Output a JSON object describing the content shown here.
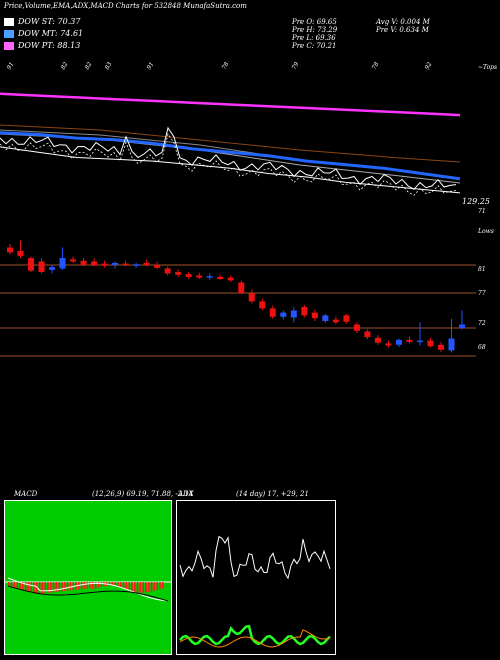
{
  "header": {
    "title": "Price,Volume,EMA,ADX,MACD Charts for 532848  MunafaSutra.com",
    "legends": [
      {
        "label": "DOW ST: 70.37",
        "color": "#ffffff"
      },
      {
        "label": "DOW MT: 74.61",
        "color": "#4aa0ff"
      },
      {
        "label": "DOW PT: 88.13",
        "color": "#ff66ff"
      }
    ],
    "ohlc": [
      {
        "label": "Pre  O: 69.65",
        "extra": "Avg V: 0.004  M"
      },
      {
        "label": "Pre  H: 73.29",
        "extra": "Pre  V: 0.634  M"
      },
      {
        "label": "Pre  L: 69.36",
        "extra": ""
      },
      {
        "label": "Pre  C: 70.21",
        "extra": ""
      }
    ]
  },
  "ema_panel": {
    "right_label": "~Tops",
    "last_value": "129.25",
    "small_axis_value": "71",
    "top_labels": [
      "91",
      "82",
      "82",
      "83",
      "91",
      "78",
      "79",
      "78",
      "92"
    ],
    "bottom_labels": [
      "99",
      "83",
      "93",
      "94",
      "93",
      "82",
      "81",
      "73",
      "77",
      "72",
      "66",
      "69",
      "70"
    ]
  },
  "price_panel": {
    "right_label": "Lows",
    "y_ticks": [
      "81",
      "77",
      "72",
      "68"
    ],
    "colors": {
      "up": "#2255ff",
      "down": "#ee1111",
      "ref_line": "#a0522d"
    }
  },
  "macd_panel": {
    "label": "MACD",
    "params": "(12,26,9) 69.19, 71.88, -2.14",
    "colors": {
      "bars": "#ff1a1a",
      "bg": "#00cc00"
    }
  },
  "adx_panel": {
    "label": "ADX",
    "params": "(14 day) 17, +29, 21",
    "colors": {
      "plus_di": "#ffffff",
      "minus_di": "#22ff22",
      "adx": "#ff8800"
    }
  },
  "chart_data": [
    {
      "type": "line",
      "title": "EMA",
      "series": [
        {
          "name": "DOW PT",
          "values": [
            130,
            129,
            128,
            127,
            126,
            125,
            124,
            123,
            122,
            121,
            120,
            119,
            118
          ]
        },
        {
          "name": "DOW MT",
          "values": [
            108,
            107,
            105,
            104,
            102,
            99,
            97,
            95,
            92,
            90,
            88,
            85,
            82
          ]
        },
        {
          "name": "DOW ST",
          "values": [
            100,
            97,
            94,
            93,
            92,
            90,
            88,
            85,
            83,
            80,
            78,
            76,
            74
          ]
        }
      ],
      "x": [
        1,
        2,
        3,
        4,
        5,
        6,
        7,
        8,
        9,
        10,
        11,
        12,
        13
      ]
    },
    {
      "type": "candlestick",
      "candles": [
        {
          "o": 83.5,
          "h": 84.0,
          "l": 82.5,
          "c": 82.8
        },
        {
          "o": 83.0,
          "h": 84.5,
          "l": 82.0,
          "c": 82.3
        },
        {
          "o": 82.0,
          "h": 82.2,
          "l": 80.0,
          "c": 80.2
        },
        {
          "o": 81.5,
          "h": 82.0,
          "l": 79.8,
          "c": 80.0
        },
        {
          "o": 80.3,
          "h": 81.0,
          "l": 79.8,
          "c": 80.7
        },
        {
          "o": 80.5,
          "h": 83.5,
          "l": 80.3,
          "c": 82.0
        },
        {
          "o": 81.8,
          "h": 82.2,
          "l": 81.3,
          "c": 81.5
        },
        {
          "o": 81.6,
          "h": 82.0,
          "l": 80.8,
          "c": 81.0
        },
        {
          "o": 81.5,
          "h": 82.0,
          "l": 80.8,
          "c": 81.0
        },
        {
          "o": 81.2,
          "h": 81.6,
          "l": 80.6,
          "c": 80.9
        },
        {
          "o": 81.0,
          "h": 81.5,
          "l": 80.5,
          "c": 81.3
        },
        {
          "o": 81.2,
          "h": 81.6,
          "l": 80.8,
          "c": 81.0
        },
        {
          "o": 80.9,
          "h": 81.3,
          "l": 80.6,
          "c": 81.1
        },
        {
          "o": 81.3,
          "h": 81.8,
          "l": 80.8,
          "c": 81.0
        },
        {
          "o": 81.0,
          "h": 81.5,
          "l": 80.4,
          "c": 80.6
        },
        {
          "o": 80.5,
          "h": 80.8,
          "l": 79.5,
          "c": 79.8
        },
        {
          "o": 80.0,
          "h": 80.4,
          "l": 79.3,
          "c": 79.6
        },
        {
          "o": 79.7,
          "h": 80.0,
          "l": 79.0,
          "c": 79.3
        },
        {
          "o": 79.5,
          "h": 79.9,
          "l": 79.0,
          "c": 79.2
        },
        {
          "o": 79.3,
          "h": 79.8,
          "l": 78.9,
          "c": 79.4
        },
        {
          "o": 79.3,
          "h": 79.6,
          "l": 78.9,
          "c": 79.0
        },
        {
          "o": 79.2,
          "h": 79.5,
          "l": 78.6,
          "c": 78.8
        },
        {
          "o": 78.5,
          "h": 78.8,
          "l": 76.8,
          "c": 77.0
        },
        {
          "o": 77.0,
          "h": 77.5,
          "l": 75.5,
          "c": 75.8
        },
        {
          "o": 75.8,
          "h": 76.2,
          "l": 74.5,
          "c": 74.8
        },
        {
          "o": 74.8,
          "h": 75.2,
          "l": 73.3,
          "c": 73.6
        },
        {
          "o": 73.6,
          "h": 74.5,
          "l": 73.2,
          "c": 74.2
        },
        {
          "o": 73.5,
          "h": 75.0,
          "l": 72.8,
          "c": 74.5
        },
        {
          "o": 75.0,
          "h": 75.3,
          "l": 73.5,
          "c": 73.8
        },
        {
          "o": 74.2,
          "h": 74.6,
          "l": 73.0,
          "c": 73.4
        },
        {
          "o": 73.0,
          "h": 74.0,
          "l": 72.7,
          "c": 73.8
        },
        {
          "o": 73.2,
          "h": 73.6,
          "l": 72.5,
          "c": 72.8
        },
        {
          "o": 73.8,
          "h": 74.0,
          "l": 72.6,
          "c": 72.9
        },
        {
          "o": 72.5,
          "h": 72.8,
          "l": 71.3,
          "c": 71.6
        },
        {
          "o": 71.5,
          "h": 71.8,
          "l": 70.4,
          "c": 70.7
        },
        {
          "o": 70.6,
          "h": 71.0,
          "l": 69.6,
          "c": 69.9
        },
        {
          "o": 69.8,
          "h": 70.2,
          "l": 69.2,
          "c": 69.5
        },
        {
          "o": 69.6,
          "h": 70.5,
          "l": 69.3,
          "c": 70.3
        },
        {
          "o": 70.3,
          "h": 70.8,
          "l": 69.8,
          "c": 70.0
        },
        {
          "o": 70.0,
          "h": 72.8,
          "l": 69.5,
          "c": 70.2
        },
        {
          "o": 70.2,
          "h": 70.6,
          "l": 69.2,
          "c": 69.4
        },
        {
          "o": 69.6,
          "h": 70.0,
          "l": 68.6,
          "c": 68.9
        },
        {
          "o": 68.8,
          "h": 73.3,
          "l": 68.5,
          "c": 70.5
        },
        {
          "o": 72.0,
          "h": 74.5,
          "l": 71.8,
          "c": 72.5
        }
      ]
    }
  ]
}
